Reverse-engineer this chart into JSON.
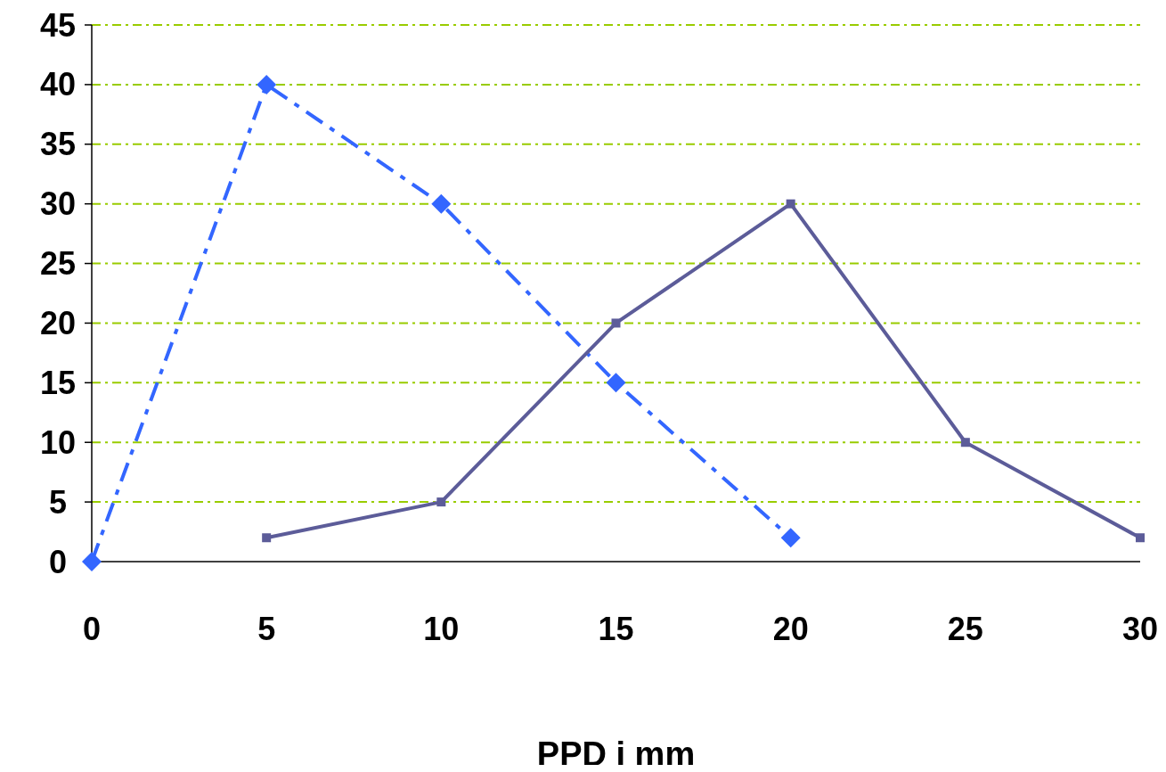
{
  "chart_data": {
    "type": "line",
    "xlabel": "PPD i mm",
    "xlim": [
      0,
      30
    ],
    "xticks": [
      0,
      5,
      10,
      15,
      20,
      25,
      30
    ],
    "ylim": [
      0,
      45
    ],
    "yticks": [
      0,
      5,
      10,
      15,
      20,
      25,
      30,
      35,
      40,
      45
    ],
    "grid": "y",
    "series": [
      {
        "color": "#3366ff",
        "marker": "diamond",
        "line_style": "dashdot",
        "x": [
          0,
          5,
          10,
          15,
          20
        ],
        "values": [
          0,
          40,
          30,
          15,
          2
        ]
      },
      {
        "color": "#5c5c99",
        "marker": "square",
        "line_style": "solid",
        "x": [
          5,
          10,
          15,
          20,
          25,
          30
        ],
        "values": [
          2,
          5,
          20,
          30,
          10,
          2
        ]
      }
    ]
  }
}
